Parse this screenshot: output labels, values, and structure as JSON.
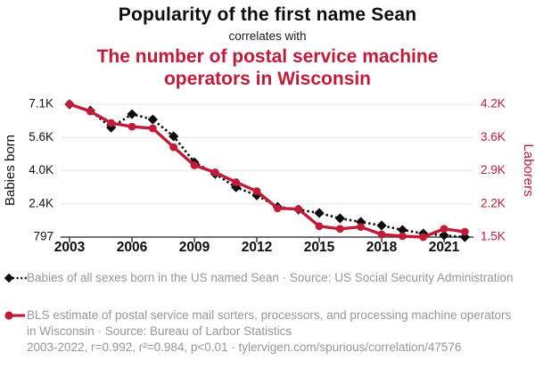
{
  "header": {
    "title": "Popularity of the first name Sean",
    "subtitle": "correlates with",
    "title2": "The number of postal service machine operators in Wisconsin"
  },
  "legend": {
    "series1": "Babies of all sexes born in the US named Sean · Source: US Social Security Administration",
    "series2": "BLS estimate of postal service mail sorters, processors, and processing machine operators in Wisconsin · Source: Bureau of Larbor Statistics",
    "stats": "2003-2022, r=0.992, r²=0.984, p<0.01 · tylervigen.com/spurious/correlation/47576"
  },
  "colors": {
    "accent_red": "#c21b3a",
    "series_black": "#0d0d0d",
    "legend_gray": "#979797",
    "gridline": "#eaeaea",
    "axis_line": "#474747"
  },
  "chart_data": {
    "type": "line",
    "x": [
      2003,
      2004,
      2005,
      2006,
      2007,
      2008,
      2009,
      2010,
      2011,
      2012,
      2013,
      2014,
      2015,
      2016,
      2017,
      2018,
      2019,
      2020,
      2021,
      2022
    ],
    "x_ticks": [
      2003,
      2006,
      2009,
      2012,
      2015,
      2018,
      2021
    ],
    "series": [
      {
        "name": "Babies of all sexes born in the US named Sean",
        "axis": "left",
        "color": "#0d0d0d",
        "line": "dashed",
        "marker": "diamond",
        "values": [
          7140,
          6840,
          6030,
          6670,
          6415,
          5610,
          4370,
          3815,
          3175,
          2790,
          2240,
          2110,
          1945,
          1690,
          1520,
          1350,
          1140,
          970,
          880,
          797
        ]
      },
      {
        "name": "BLS estimate of postal service mail sorters, processors, and processing machine operators in Wisconsin",
        "axis": "right",
        "color": "#c21b3a",
        "line": "solid",
        "marker": "circle",
        "values": [
          4240,
          4090,
          3850,
          3775,
          3740,
          3350,
          2975,
          2830,
          2625,
          2440,
          2085,
          2070,
          1715,
          1660,
          1700,
          1545,
          1510,
          1490,
          1660,
          1600
        ]
      }
    ],
    "left_axis": {
      "label": "Babies born",
      "ticks": [
        "7.1K",
        "5.6K",
        "4.0K",
        "2.4K",
        "797"
      ],
      "range": [
        797,
        7141
      ]
    },
    "right_axis": {
      "label": "Laborers",
      "ticks": [
        "4.2K",
        "3.6K",
        "2.9K",
        "2.2K",
        "1.5K"
      ],
      "range": [
        1490,
        4238
      ]
    },
    "grid": "horizontal-only",
    "legend_position": "bottom"
  }
}
